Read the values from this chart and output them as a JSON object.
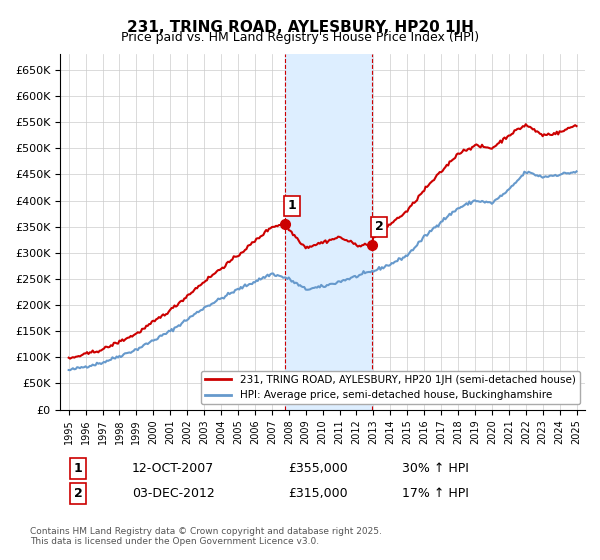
{
  "title": "231, TRING ROAD, AYLESBURY, HP20 1JH",
  "subtitle": "Price paid vs. HM Land Registry's House Price Index (HPI)",
  "legend_line1": "231, TRING ROAD, AYLESBURY, HP20 1JH (semi-detached house)",
  "legend_line2": "HPI: Average price, semi-detached house, Buckinghamshire",
  "footer": "Contains HM Land Registry data © Crown copyright and database right 2025.\nThis data is licensed under the Open Government Licence v3.0.",
  "annotation1_label": "1",
  "annotation1_date": "12-OCT-2007",
  "annotation1_price": "£355,000",
  "annotation1_hpi": "30% ↑ HPI",
  "annotation2_label": "2",
  "annotation2_date": "03-DEC-2012",
  "annotation2_price": "£315,000",
  "annotation2_hpi": "17% ↑ HPI",
  "sale1_x": 2007.79,
  "sale1_y": 355000,
  "sale2_x": 2012.92,
  "sale2_y": 315000,
  "highlight_xmin": 2007.79,
  "highlight_xmax": 2012.92,
  "red_color": "#cc0000",
  "blue_color": "#6699cc",
  "highlight_color": "#ddeeff",
  "ylim_min": 0,
  "ylim_max": 680000,
  "xlim_min": 1994.5,
  "xlim_max": 2025.5,
  "yticks": [
    0,
    50000,
    100000,
    150000,
    200000,
    250000,
    300000,
    350000,
    400000,
    450000,
    500000,
    550000,
    600000,
    650000
  ],
  "xticks": [
    1995,
    1996,
    1997,
    1998,
    1999,
    2000,
    2001,
    2002,
    2003,
    2004,
    2005,
    2006,
    2007,
    2008,
    2009,
    2010,
    2011,
    2012,
    2013,
    2014,
    2015,
    2016,
    2017,
    2018,
    2019,
    2020,
    2021,
    2022,
    2023,
    2024,
    2025
  ]
}
